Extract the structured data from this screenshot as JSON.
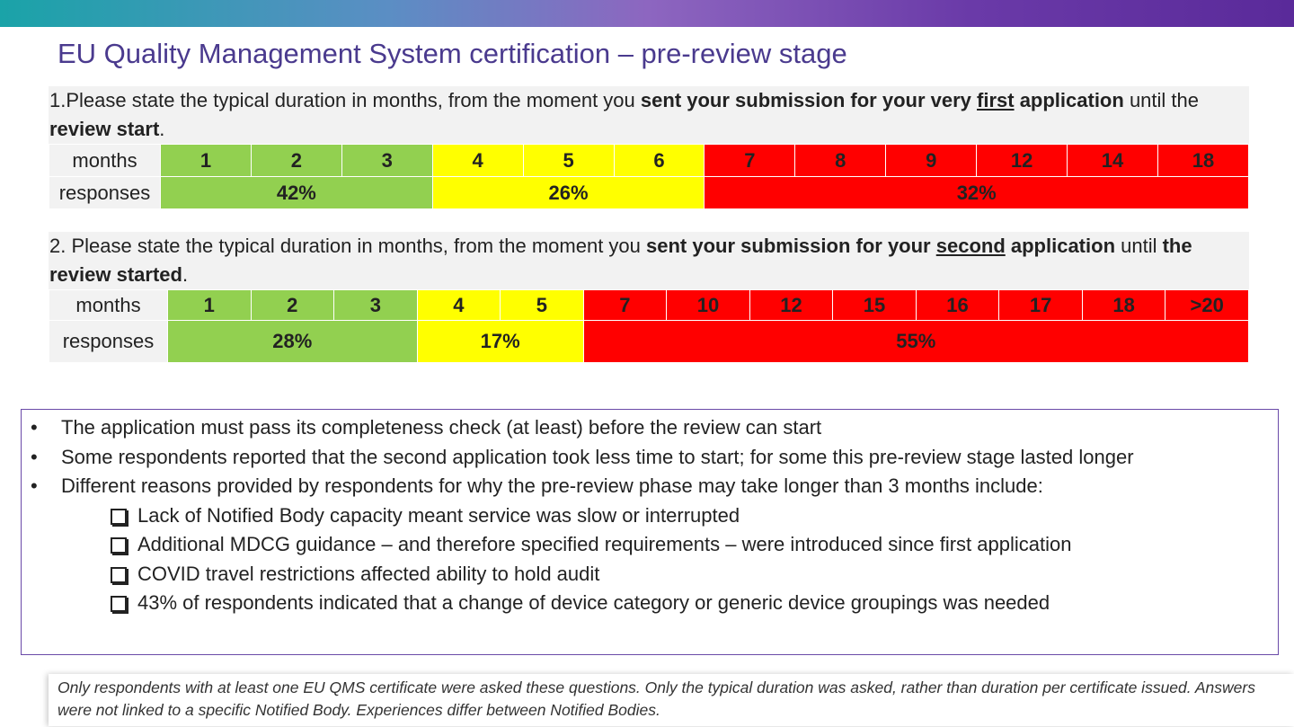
{
  "header": {
    "title": "EU Quality Management System certification – pre-review stage"
  },
  "questions": [
    {
      "segments": [
        {
          "text": "1.Please state the typical duration in months, from the moment you ",
          "style": "normal"
        },
        {
          "text": "sent your submission for your very ",
          "style": "bold"
        },
        {
          "text": "first",
          "style": "bold-underline"
        },
        {
          "text": " application",
          "style": "bold"
        },
        {
          "text": " until the ",
          "style": "normal"
        },
        {
          "text": "review start",
          "style": "bold"
        },
        {
          "text": ".",
          "style": "normal"
        }
      ],
      "table": {
        "months_label": "months",
        "responses_label": "responses",
        "groups": [
          {
            "color": "#92d050",
            "months": [
              "1",
              "2",
              "3"
            ],
            "share": "42%"
          },
          {
            "color": "#ffff00",
            "months": [
              "4",
              "5",
              "6"
            ],
            "share": "26%"
          },
          {
            "color": "#ff0000",
            "months": [
              "7",
              "8",
              "9",
              "12",
              "14",
              "18"
            ],
            "share": "32%"
          }
        ]
      }
    },
    {
      "segments": [
        {
          "text": "2. Please state the typical duration in months, from the moment you ",
          "style": "normal"
        },
        {
          "text": "sent your submission for your ",
          "style": "bold"
        },
        {
          "text": "second",
          "style": "bold-underline"
        },
        {
          "text": " application",
          "style": "bold"
        },
        {
          "text": " until ",
          "style": "normal"
        },
        {
          "text": "the review started",
          "style": "bold"
        },
        {
          "text": ".",
          "style": "normal"
        }
      ],
      "table": {
        "months_label": "months",
        "responses_label": "responses",
        "groups": [
          {
            "color": "#92d050",
            "months": [
              "1",
              "2",
              "3"
            ],
            "share": "28%"
          },
          {
            "color": "#ffff00",
            "months": [
              "4",
              "5"
            ],
            "share": "17%"
          },
          {
            "color": "#ff0000",
            "months": [
              "7",
              "10",
              "12",
              "15",
              "16",
              "17",
              "18",
              ">20"
            ],
            "share": "55%"
          }
        ]
      }
    }
  ],
  "notes": [
    {
      "text": "The application must pass its completeness check (at least) before the review can start",
      "items": []
    },
    {
      "text": "Some respondents reported that the second application took less time to start; for some this pre-review stage lasted longer",
      "items": []
    },
    {
      "text": "Different reasons provided by respondents for why the pre-review phase may take longer than 3 months include:",
      "items": [
        "Lack of Notified Body capacity meant service was slow or interrupted",
        "Additional MDCG guidance – and therefore specified requirements – were introduced since first application",
        "COVID travel restrictions affected ability to hold audit",
        "43% of respondents indicated that a change of device category or generic device groupings was needed"
      ]
    }
  ],
  "footnote": "Only respondents with at least one EU QMS certificate were asked these questions. Only the typical duration was asked, rather than duration per certificate issued. Answers were not linked to a specific Notified Body. Experiences differ between Notified Bodies."
}
